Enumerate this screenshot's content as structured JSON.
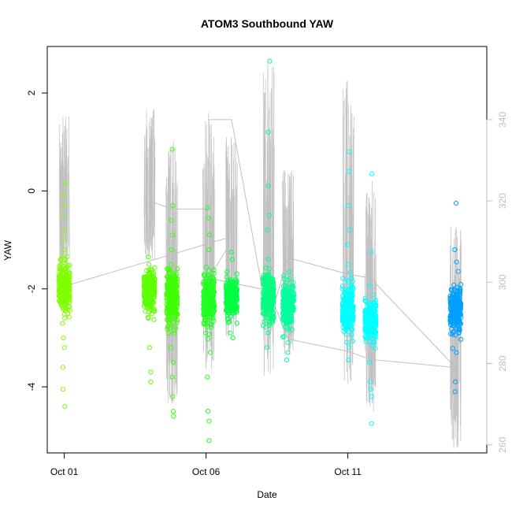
{
  "chart_data": {
    "type": "scatter",
    "title": "ATOM3 Southbound YAW",
    "xlabel": "Date",
    "ylabel": "YAW",
    "x_ticks": [
      "Oct 01",
      "Oct 06",
      "Oct 11"
    ],
    "x_tick_days": [
      1,
      6,
      11
    ],
    "x_range_days": [
      0.4,
      15.9
    ],
    "ylim": [
      -5.35,
      2.95
    ],
    "y_ticks": [
      -4,
      -2,
      0,
      2
    ],
    "y2_ticks": [
      260,
      280,
      300,
      320,
      340
    ],
    "y2lim": [
      258.0,
      358.0
    ],
    "grid": false,
    "series": [
      {
        "color": "#80ff00",
        "points": [
          [
            1.0,
            0.15
          ],
          [
            1.0,
            -0.1
          ],
          [
            1.0,
            -0.3
          ],
          [
            1.0,
            -0.5
          ],
          [
            1.0,
            -0.8
          ],
          [
            1.0,
            -1.0
          ],
          [
            1.0,
            -1.2
          ],
          [
            1.0,
            -1.4
          ],
          [
            1.0,
            -1.6
          ],
          [
            1.0,
            -1.8
          ],
          [
            1.0,
            -2.0
          ],
          [
            1.0,
            -2.2
          ],
          [
            1.0,
            -2.4
          ],
          [
            1.0,
            -2.6
          ],
          [
            1.0,
            -3.0
          ],
          [
            1.0,
            -3.2
          ],
          [
            1.0,
            -3.6
          ],
          [
            1.0,
            -4.05
          ],
          [
            1.0,
            -4.4
          ]
        ],
        "cluster": {
          "center": -2.0,
          "spread": 0.55
        }
      },
      {
        "color": "#5cff00",
        "points": [
          [
            4.0,
            -1.35
          ],
          [
            4.0,
            -1.5
          ],
          [
            4.0,
            -2.6
          ],
          [
            4.0,
            -3.2
          ],
          [
            4.0,
            -3.7
          ],
          [
            4.0,
            -3.9
          ]
        ],
        "cluster": {
          "center": -2.05,
          "spread": 0.45
        }
      },
      {
        "color": "#40ff00",
        "points": [
          [
            4.8,
            0.85
          ],
          [
            4.8,
            -0.3
          ],
          [
            4.8,
            -0.6
          ],
          [
            4.8,
            -0.9
          ],
          [
            4.8,
            -1.2
          ],
          [
            4.8,
            -1.5
          ],
          [
            4.8,
            -3.2
          ],
          [
            4.8,
            -3.5
          ],
          [
            4.8,
            -3.8
          ],
          [
            4.8,
            -4.2
          ],
          [
            4.8,
            -4.5
          ],
          [
            4.8,
            -4.6
          ]
        ],
        "cluster": {
          "center": -2.2,
          "spread": 0.6
        }
      },
      {
        "color": "#20ff20",
        "points": [
          [
            6.1,
            -0.35
          ],
          [
            6.1,
            -0.55
          ],
          [
            6.1,
            -0.9
          ],
          [
            6.1,
            -1.2
          ],
          [
            6.1,
            -3.3
          ],
          [
            6.1,
            -3.8
          ],
          [
            6.1,
            -4.5
          ],
          [
            6.1,
            -4.7
          ],
          [
            6.1,
            -5.1
          ]
        ],
        "cluster": {
          "center": -2.2,
          "spread": 0.55
        }
      },
      {
        "color": "#00ff40",
        "points": [
          [
            6.9,
            -1.25
          ],
          [
            6.9,
            -1.4
          ],
          [
            6.9,
            -2.9
          ],
          [
            6.9,
            -3.0
          ]
        ],
        "cluster": {
          "center": -2.2,
          "spread": 0.45
        }
      },
      {
        "color": "#00ff80",
        "points": [
          [
            8.2,
            2.65
          ],
          [
            8.2,
            1.2
          ],
          [
            8.2,
            0.1
          ],
          [
            8.2,
            -0.5
          ],
          [
            8.2,
            -0.8
          ],
          [
            8.2,
            -1.4
          ],
          [
            8.2,
            -2.9
          ],
          [
            8.2,
            -3.2
          ]
        ],
        "cluster": {
          "center": -2.2,
          "spread": 0.5
        }
      },
      {
        "color": "#00ff9f",
        "points": [
          [
            8.9,
            -1.65
          ],
          [
            8.9,
            -3.1
          ],
          [
            8.9,
            -3.3
          ],
          [
            8.9,
            -3.45
          ]
        ],
        "cluster": {
          "center": -2.3,
          "spread": 0.45
        }
      },
      {
        "color": "#00ffff",
        "points": [
          [
            11.0,
            0.8
          ],
          [
            11.0,
            0.4
          ],
          [
            11.0,
            -0.3
          ],
          [
            11.0,
            -0.8
          ],
          [
            11.0,
            -1.1
          ],
          [
            11.0,
            -1.5
          ],
          [
            11.0,
            -3.2
          ],
          [
            11.0,
            -3.45
          ]
        ],
        "cluster": {
          "center": -2.4,
          "spread": 0.55
        }
      },
      {
        "color": "#00ffff",
        "points": [
          [
            11.8,
            0.35
          ],
          [
            11.8,
            -1.25
          ],
          [
            11.8,
            -3.5
          ],
          [
            11.8,
            -3.9
          ],
          [
            11.8,
            -4.05
          ],
          [
            11.8,
            -4.2
          ],
          [
            11.8,
            -4.75
          ]
        ],
        "cluster": {
          "center": -2.65,
          "spread": 0.45
        }
      },
      {
        "color": "#00a0ff",
        "points": [
          [
            14.8,
            -0.25
          ],
          [
            14.8,
            -1.2
          ],
          [
            14.8,
            -1.45
          ],
          [
            14.8,
            -3.3
          ],
          [
            14.8,
            -3.9
          ],
          [
            14.8,
            -4.1
          ]
        ],
        "cluster": {
          "center": -2.45,
          "spread": 0.5
        }
      }
    ],
    "heading_line": {
      "color": "#c0c0c0",
      "axis": "right",
      "points": [
        [
          1.0,
          299
        ],
        [
          6.8,
          311
        ],
        [
          6.8,
          309
        ],
        [
          6.1,
          301
        ],
        [
          8.2,
          298
        ],
        [
          8.9,
          286
        ],
        [
          11.0,
          283
        ],
        [
          11.8,
          281
        ],
        [
          14.8,
          279
        ],
        [
          11.8,
          301
        ],
        [
          11.0,
          302
        ],
        [
          8.9,
          306
        ],
        [
          8.2,
          290
        ],
        [
          6.9,
          340
        ],
        [
          6.1,
          340
        ],
        [
          6.1,
          318
        ],
        [
          4.8,
          318
        ],
        [
          4.0,
          320
        ],
        [
          4.0,
          307
        ]
      ]
    },
    "heading_spikes": [
      {
        "x": 1.0,
        "top": 341,
        "bottom": 300
      },
      {
        "x": 4.0,
        "top": 343,
        "bottom": 305
      },
      {
        "x": 4.8,
        "top": 335,
        "bottom": 270
      },
      {
        "x": 6.1,
        "top": 342,
        "bottom": 278
      },
      {
        "x": 6.9,
        "top": 336,
        "bottom": 286
      },
      {
        "x": 8.2,
        "top": 354,
        "bottom": 276
      },
      {
        "x": 8.9,
        "top": 328,
        "bottom": 282
      },
      {
        "x": 11.0,
        "top": 350,
        "bottom": 275
      },
      {
        "x": 11.8,
        "top": 325,
        "bottom": 268
      },
      {
        "x": 14.8,
        "top": 314,
        "bottom": 259
      }
    ]
  }
}
